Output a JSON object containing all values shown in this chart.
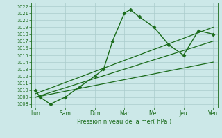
{
  "xlabel": "Pression niveau de la mer( hPa )",
  "xtick_labels": [
    "Lun",
    "Sam",
    "Dim",
    "Mar",
    "Mer",
    "Jeu",
    "Ven"
  ],
  "xtick_positions": [
    0,
    1,
    2,
    3,
    4,
    5,
    6
  ],
  "ylim": [
    1007.5,
    1022.5
  ],
  "yticks": [
    1008,
    1009,
    1010,
    1011,
    1012,
    1013,
    1014,
    1015,
    1016,
    1017,
    1018,
    1019,
    1020,
    1021,
    1022
  ],
  "bg_color": "#cce8e8",
  "grid_color": "#aacccc",
  "line_color": "#1a6b1a",
  "main_line": {
    "x": [
      0,
      0.15,
      0.5,
      1.0,
      1.5,
      2.0,
      2.3,
      2.6,
      3.0,
      3.2,
      3.5,
      4.0,
      4.5,
      5.0,
      5.5,
      6.0
    ],
    "y": [
      1010,
      1009,
      1008.0,
      1009.0,
      1010.5,
      1012.0,
      1013.0,
      1017.0,
      1021.0,
      1021.5,
      1020.5,
      1019.0,
      1016.5,
      1015.0,
      1018.5,
      1018.0
    ],
    "marker": "D",
    "markersize": 2.5,
    "linewidth": 1.0
  },
  "flat_lines": [
    {
      "x": [
        0,
        6
      ],
      "y": [
        1009.0,
        1014.0
      ],
      "linewidth": 0.9
    },
    {
      "x": [
        0,
        6
      ],
      "y": [
        1009.0,
        1017.0
      ],
      "linewidth": 0.9
    },
    {
      "x": [
        0,
        6
      ],
      "y": [
        1009.5,
        1019.0
      ],
      "linewidth": 0.9
    }
  ],
  "figsize": [
    3.2,
    2.0
  ],
  "dpi": 100
}
